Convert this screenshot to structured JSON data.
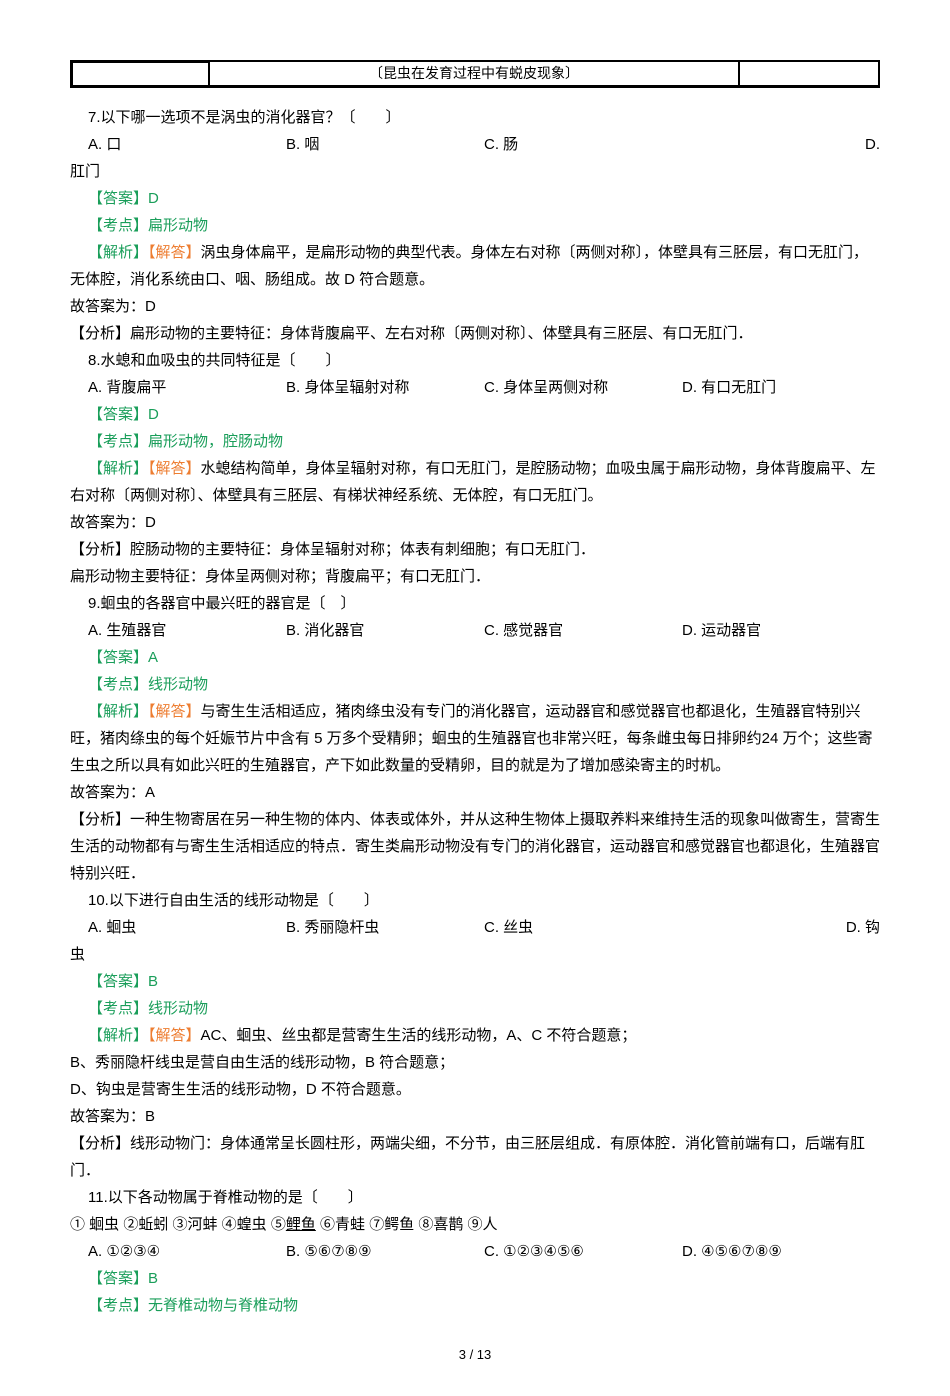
{
  "header_box": "〔昆虫在发育过程中有蜕皮现象〕",
  "q7": {
    "intro": "7.以下哪一选项不是涡虫的消化器官？〔　　〕",
    "opts": {
      "a": "A. 口",
      "b": "B. 咽",
      "c": "C. 肠",
      "d": "D. 肛门"
    },
    "answer": "【答案】D",
    "topic": "【考点】扁形动物",
    "analysis_lbl": "【解析】",
    "analysis_red": "【解答】",
    "analysis_text": "涡虫身体扁平，是扁形动物的典型代表。身体左右对称〔两侧对称〕，体壁具有三胚层，有口无肛门，无体腔，消化系统由口、咽、肠组成。故 D 符合题意。",
    "conclusion": "故答案为：D",
    "summary": "【分析】扁形动物的主要特征：身体背腹扁平、左右对称〔两侧对称〕、体壁具有三胚层、有口无肛门．"
  },
  "q8": {
    "intro": "8.水螅和血吸虫的共同特征是〔　　〕",
    "opts": {
      "a": "A. 背腹扁平",
      "b": "B. 身体呈辐射对称",
      "c": "C. 身体呈两侧对称",
      "d": "D. 有口无肛门"
    },
    "answer": "【答案】D",
    "topic": "【考点】扁形动物，腔肠动物",
    "analysis_lbl": "【解析】",
    "analysis_red": "【解答】",
    "analysis_text": "水螅结构简单，身体呈辐射对称，有口无肛门，是腔肠动物；血吸虫属于扁形动物，身体背腹扁平、左右对称〔两侧对称〕、体壁具有三胚层、有梯状神经系统、无体腔，有口无肛门。",
    "conclusion": "故答案为：D",
    "summary1": "【分析】腔肠动物的主要特征：身体呈辐射对称；体表有刺细胞；有口无肛门．",
    "summary2": "扁形动物主要特征：身体呈两侧对称；背腹扁平；有口无肛门．"
  },
  "q9": {
    "intro": "9.蛔虫的各器官中最兴旺的器官是〔　〕",
    "opts": {
      "a": "A. 生殖器官",
      "b": "B. 消化器官",
      "c": "C. 感觉器官",
      "d": "D. 运动器官"
    },
    "answer": "【答案】A",
    "topic": "【考点】线形动物",
    "analysis_lbl": "【解析】",
    "analysis_red": "【解答】",
    "analysis_text": "与寄生生活相适应，猪肉绦虫没有专门的消化器官，运动器官和感觉器官也都退化，生殖器官特别兴旺，猪肉绦虫的每个妊娠节片中含有 5 万多个受精卵；蛔虫的生殖器官也非常兴旺，每条雌虫每日排卵约24 万个；这些寄生虫之所以具有如此兴旺的生殖器官，产下如此数量的受精卵，目的就是为了增加感染寄主的时机。",
    "conclusion": "故答案为：A",
    "summary": "【分析】一种生物寄居在另一种生物的体内、体表或体外，并从这种生物体上摄取养料来维持生活的现象叫做寄生，营寄生生活的动物都有与寄生生活相适应的特点．寄生类扁形动物没有专门的消化器官，运动器官和感觉器官也都退化，生殖器官特别兴旺．"
  },
  "q10": {
    "intro": "10.以下进行自由生活的线形动物是〔　　〕",
    "opts": {
      "a": "A. 蛔虫",
      "b": "B. 秀丽隐杆虫",
      "c": "C. 丝虫",
      "d": "D. 钩虫"
    },
    "answer": "【答案】B",
    "topic": "【考点】线形动物",
    "analysis_lbl": "【解析】",
    "analysis_red": "【解答】",
    "analysis_text1": "AC、蛔虫、丝虫都是营寄生生活的线形动物，A、C 不符合题意；",
    "line_b": "B、秀丽隐杆线虫是营自由生活的线形动物，B 符合题意；",
    "line_d": "D、钩虫是营寄生生活的线形动物，D 不符合题意。",
    "conclusion": "故答案为：B",
    "summary": "【分析】线形动物门：身体通常呈长圆柱形，两端尖细，不分节，由三胚层组成．有原体腔．消化管前端有口，后端有肛门．"
  },
  "q11": {
    "intro": "11.以下各动物属于脊椎动物的是〔　　〕",
    "items": "① 蛔虫  ②蚯蚓  ③河蚌  ④蝗虫  ⑤",
    "item5": "鲤鱼",
    "items2": "  ⑥青蛙  ⑦鳄鱼  ⑧喜鹊  ⑨人",
    "opts": {
      "a": "A. ①②③④",
      "b": "B. ⑤⑥⑦⑧⑨",
      "c": "C. ①②③④⑤⑥",
      "d": "D. ④⑤⑥⑦⑧⑨"
    },
    "answer": "【答案】B",
    "topic": "【考点】无脊椎动物与脊椎动物"
  },
  "page": "3 / 13"
}
